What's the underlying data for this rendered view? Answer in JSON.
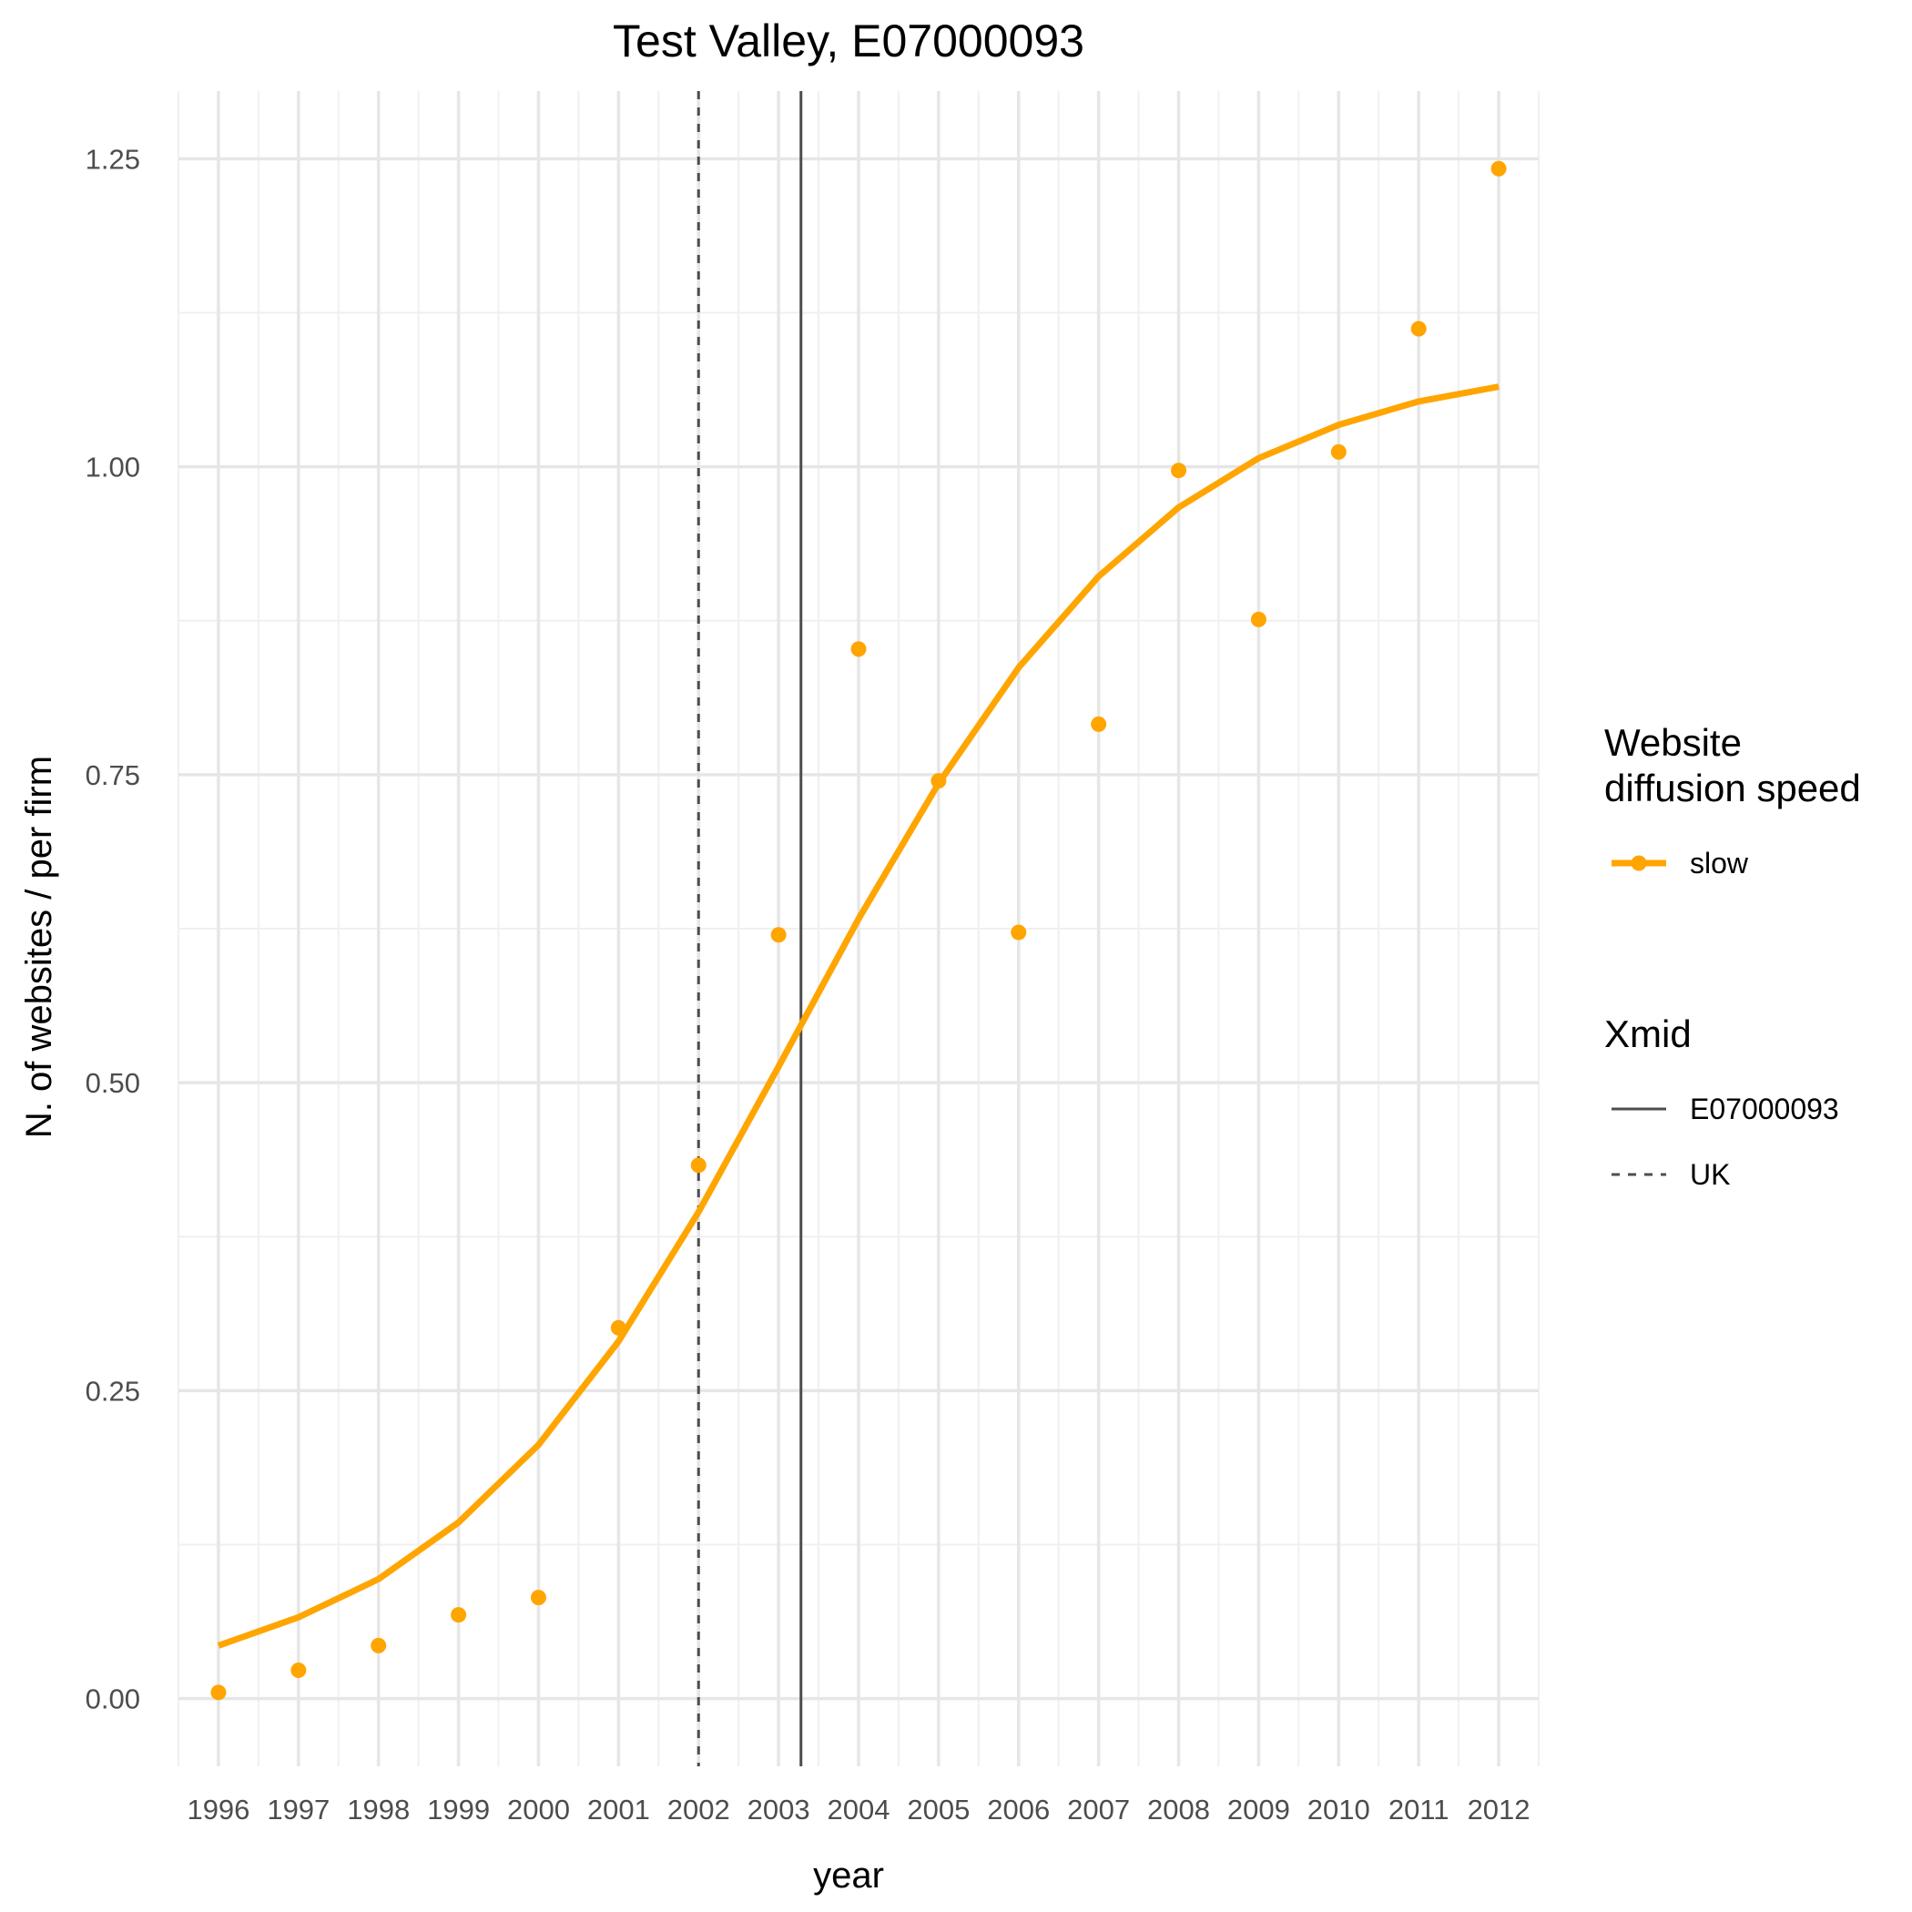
{
  "chart_data": {
    "type": "line",
    "title": "Test Valley, E07000093",
    "xlabel": "year",
    "ylabel": "N. of websites / per firm",
    "xlim": [
      1995.5,
      2012.5
    ],
    "ylim": [
      -0.055,
      1.305
    ],
    "x_ticks": [
      1996,
      1997,
      1998,
      1999,
      2000,
      2001,
      2002,
      2003,
      2004,
      2005,
      2006,
      2007,
      2008,
      2009,
      2010,
      2011,
      2012
    ],
    "x_tick_labels": [
      "1996",
      "1997",
      "1998",
      "1999",
      "2000",
      "2001",
      "2002",
      "2003",
      "2004",
      "2005",
      "2006",
      "2007",
      "2008",
      "2009",
      "2010",
      "2011",
      "2012"
    ],
    "y_ticks": [
      0,
      0.25,
      0.5,
      0.75,
      1.0,
      1.25
    ],
    "y_tick_labels": [
      "0.00",
      "0.25",
      "0.50",
      "0.75",
      "1.00",
      "1.25"
    ],
    "grid": true,
    "series": [
      {
        "name": "slow",
        "kind": "points",
        "color": "#FFA500",
        "x": [
          1996,
          1997,
          1998,
          1999,
          2000,
          2001,
          2002,
          2003,
          2004,
          2005,
          2006,
          2007,
          2008,
          2009,
          2010,
          2011,
          2012
        ],
        "y": [
          0.005,
          0.023,
          0.043,
          0.068,
          0.082,
          0.301,
          0.433,
          0.62,
          0.852,
          0.745,
          0.622,
          0.791,
          0.997,
          0.876,
          1.012,
          1.112,
          1.242
        ]
      },
      {
        "name": "slow",
        "kind": "fitted-line",
        "color": "#FFA500",
        "x": [
          1996,
          1997,
          1998,
          1999,
          2000,
          2001,
          2002,
          2003,
          2004,
          2005,
          2006,
          2007,
          2008,
          2009,
          2010,
          2011,
          2012
        ],
        "y": [
          0.043,
          0.066,
          0.097,
          0.143,
          0.206,
          0.29,
          0.395,
          0.513,
          0.633,
          0.743,
          0.837,
          0.911,
          0.967,
          1.007,
          1.034,
          1.053,
          1.065
        ]
      }
    ],
    "vlines": [
      {
        "label": "E07000093",
        "x": 2003.28,
        "style": "solid",
        "color": "#4d4d4d"
      },
      {
        "label": "UK",
        "x": 2002.0,
        "style": "dashed",
        "color": "#4d4d4d"
      }
    ],
    "legend": {
      "placement": "right",
      "groups": [
        {
          "title_lines": [
            "Website",
            "diffusion speed"
          ],
          "items": [
            {
              "label": "slow",
              "kind": "point-line",
              "color": "#FFA500"
            }
          ]
        },
        {
          "title_lines": [
            "Xmid"
          ],
          "items": [
            {
              "label": "E07000093",
              "kind": "solid-line",
              "color": "#4d4d4d"
            },
            {
              "label": "UK",
              "kind": "dashed-line",
              "color": "#4d4d4d"
            }
          ]
        }
      ]
    }
  }
}
